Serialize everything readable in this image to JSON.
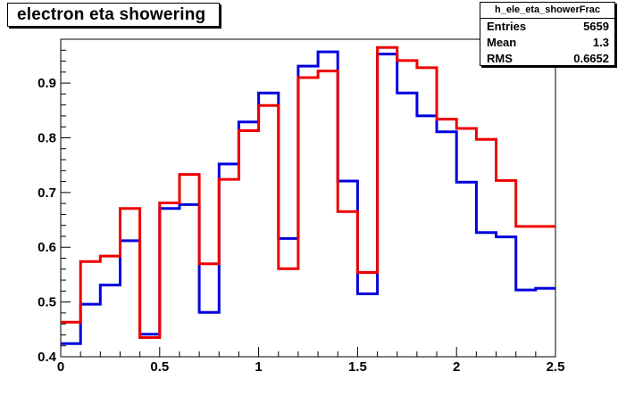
{
  "title": "electron eta showering",
  "stats": {
    "name": "h_ele_eta_showerFrac",
    "rows": [
      {
        "label": "Entries",
        "value": "5659"
      },
      {
        "label": "Mean",
        "value": "1.3"
      },
      {
        "label": "RMS",
        "value": "0.6652"
      }
    ]
  },
  "chart_data": {
    "type": "line",
    "step": true,
    "xlim": [
      0,
      2.5
    ],
    "ylim": [
      0.4,
      0.98
    ],
    "x_ticks": [
      {
        "value": 0,
        "label": "0"
      },
      {
        "value": 0.5,
        "label": "0.5"
      },
      {
        "value": 1,
        "label": "1"
      },
      {
        "value": 1.5,
        "label": "1.5"
      },
      {
        "value": 2,
        "label": "2"
      },
      {
        "value": 2.5,
        "label": "2.5"
      }
    ],
    "y_ticks": [
      {
        "value": 0.4,
        "label": "0.4"
      },
      {
        "value": 0.5,
        "label": "0.5"
      },
      {
        "value": 0.6,
        "label": "0.6"
      },
      {
        "value": 0.7,
        "label": "0.7"
      },
      {
        "value": 0.8,
        "label": "0.8"
      },
      {
        "value": 0.9,
        "label": "0.9"
      }
    ],
    "bin_edges": [
      0,
      0.1,
      0.2,
      0.3,
      0.4,
      0.5,
      0.6,
      0.7,
      0.8,
      0.9,
      1.0,
      1.1,
      1.2,
      1.3,
      1.4,
      1.5,
      1.6,
      1.7,
      1.8,
      1.9,
      2.0,
      2.1,
      2.2,
      2.3,
      2.4,
      2.5
    ],
    "series": [
      {
        "color": "#0000dd",
        "values": [
          0.424,
          0.496,
          0.531,
          0.612,
          0.441,
          0.671,
          0.678,
          0.481,
          0.752,
          0.829,
          0.882,
          0.616,
          0.931,
          0.957,
          0.721,
          0.515,
          0.953,
          0.882,
          0.84,
          0.811,
          0.719,
          0.627,
          0.619,
          0.522,
          0.525
        ]
      },
      {
        "color": "#ee0000",
        "values": [
          0.463,
          0.574,
          0.584,
          0.671,
          0.435,
          0.681,
          0.733,
          0.57,
          0.724,
          0.813,
          0.859,
          0.561,
          0.91,
          0.922,
          0.665,
          0.554,
          0.965,
          0.941,
          0.928,
          0.834,
          0.817,
          0.797,
          0.722,
          0.638,
          0.638
        ]
      }
    ]
  }
}
